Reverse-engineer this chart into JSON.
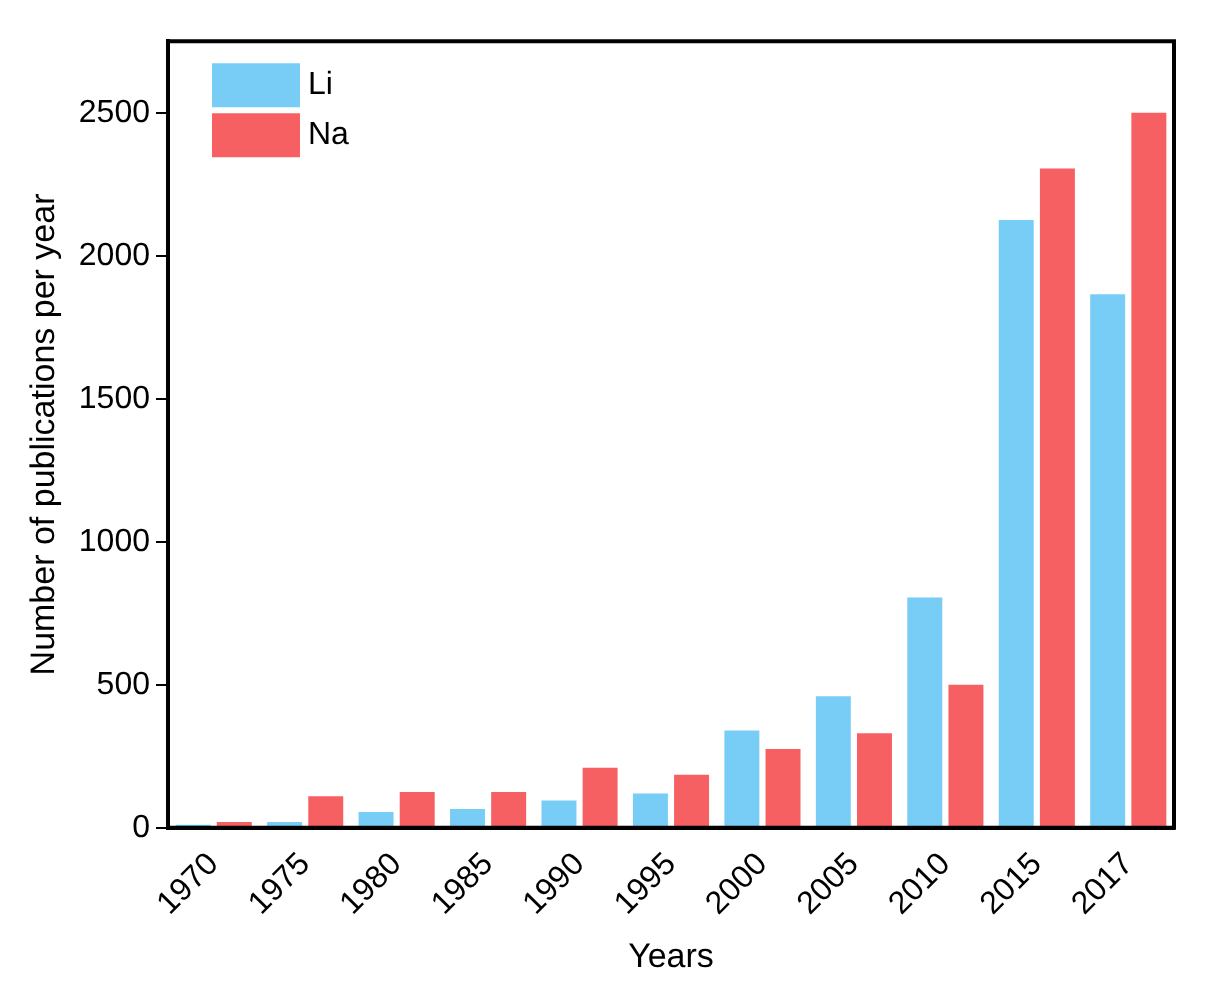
{
  "chart_data": {
    "type": "bar",
    "xlabel": "Years",
    "ylabel": "Number of publications per year",
    "categories": [
      "1970",
      "1975",
      "1980",
      "1985",
      "1990",
      "1995",
      "2000",
      "2005",
      "2010",
      "2015",
      "2017"
    ],
    "series": [
      {
        "name": "Li",
        "color": "#78cdf6",
        "values": [
          10,
          20,
          55,
          65,
          95,
          120,
          340,
          460,
          805,
          2125,
          1865
        ]
      },
      {
        "name": "Na",
        "color": "#f76062",
        "values": [
          20,
          110,
          125,
          125,
          210,
          185,
          275,
          330,
          500,
          2305,
          2500
        ]
      }
    ],
    "ylim": [
      0,
      2750
    ],
    "yticks": [
      0,
      500,
      1000,
      1500,
      2000,
      2500
    ],
    "legend": "top left",
    "grid": false
  }
}
